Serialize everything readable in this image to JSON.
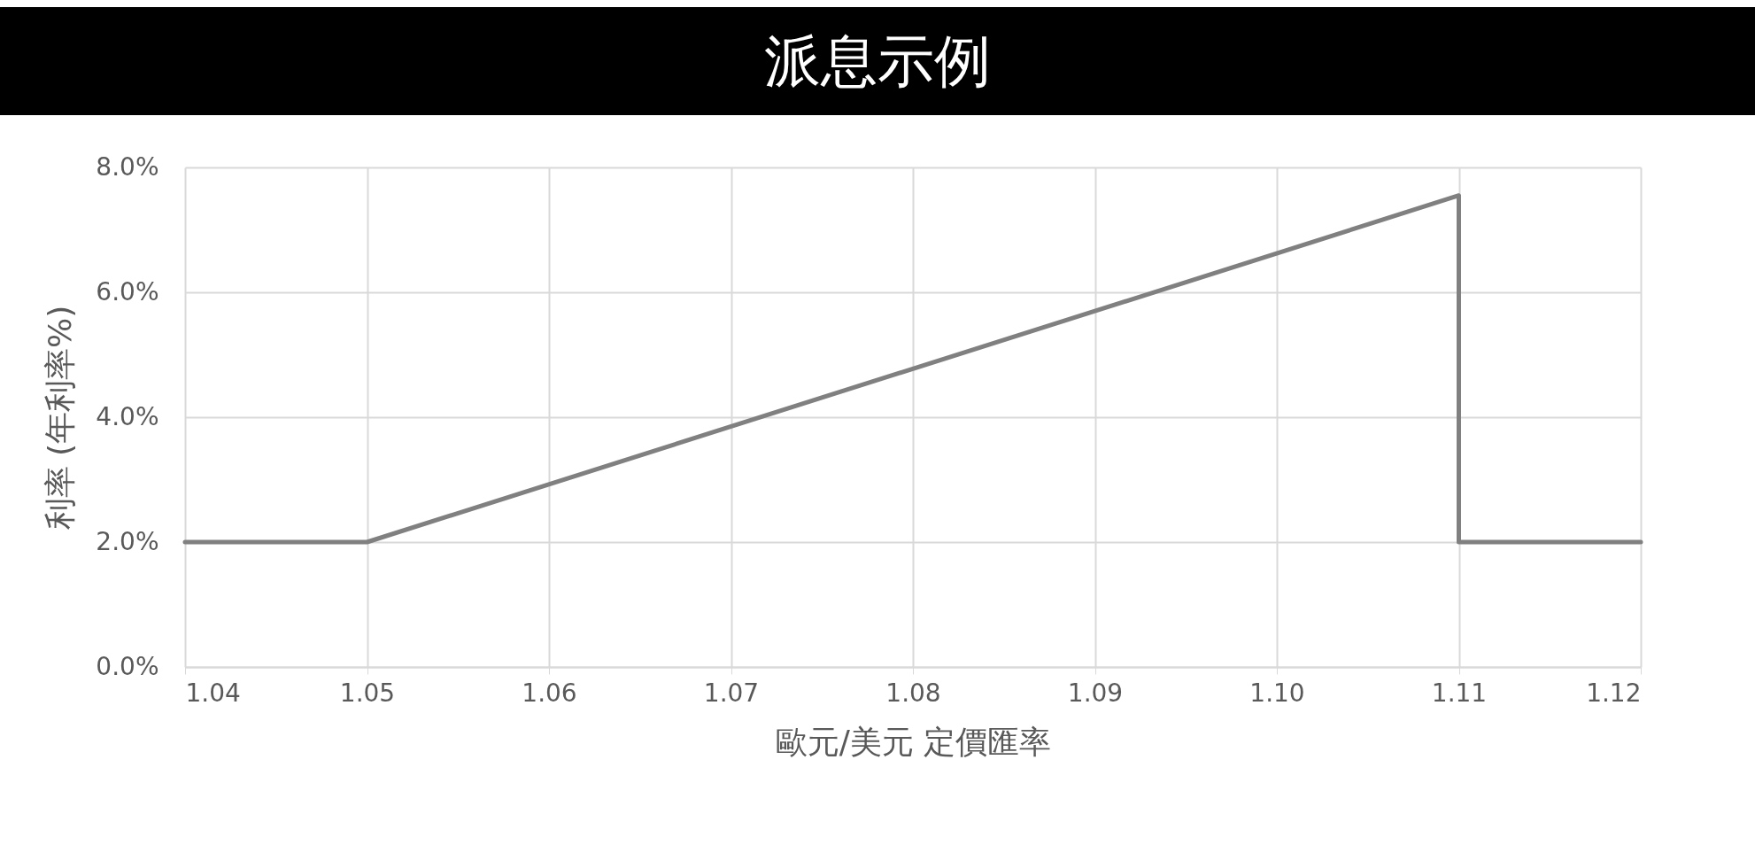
{
  "chart_data": {
    "type": "line",
    "title": "派息示例",
    "xlabel": "歐元/美元 定價匯率",
    "ylabel": "利率 (年利率%)",
    "x": [
      1.04,
      1.05,
      1.11,
      1.11,
      1.12
    ],
    "series": [
      {
        "color": "#808080",
        "values": [
          2.0,
          2.0,
          7.55,
          2.0,
          2.0
        ]
      }
    ],
    "xlim": [
      1.04,
      1.12
    ],
    "xticks": [
      {
        "value": 1.04,
        "label": "1.04"
      },
      {
        "value": 1.05,
        "label": "1.05"
      },
      {
        "value": 1.06,
        "label": "1.06"
      },
      {
        "value": 1.07,
        "label": "1.07"
      },
      {
        "value": 1.08,
        "label": "1.08"
      },
      {
        "value": 1.09,
        "label": "1.09"
      },
      {
        "value": 1.1,
        "label": "1.10"
      },
      {
        "value": 1.11,
        "label": "1.11"
      },
      {
        "value": 1.12,
        "label": "1.12"
      }
    ],
    "ylim": [
      0,
      8
    ],
    "yticks": [
      {
        "value": 0,
        "label": "0.0%"
      },
      {
        "value": 2,
        "label": "2.0%"
      },
      {
        "value": 4,
        "label": "4.0%"
      },
      {
        "value": 6,
        "label": "6.0%"
      },
      {
        "value": 8,
        "label": "8.0%"
      }
    ],
    "grid": true,
    "line_style": "solid"
  }
}
